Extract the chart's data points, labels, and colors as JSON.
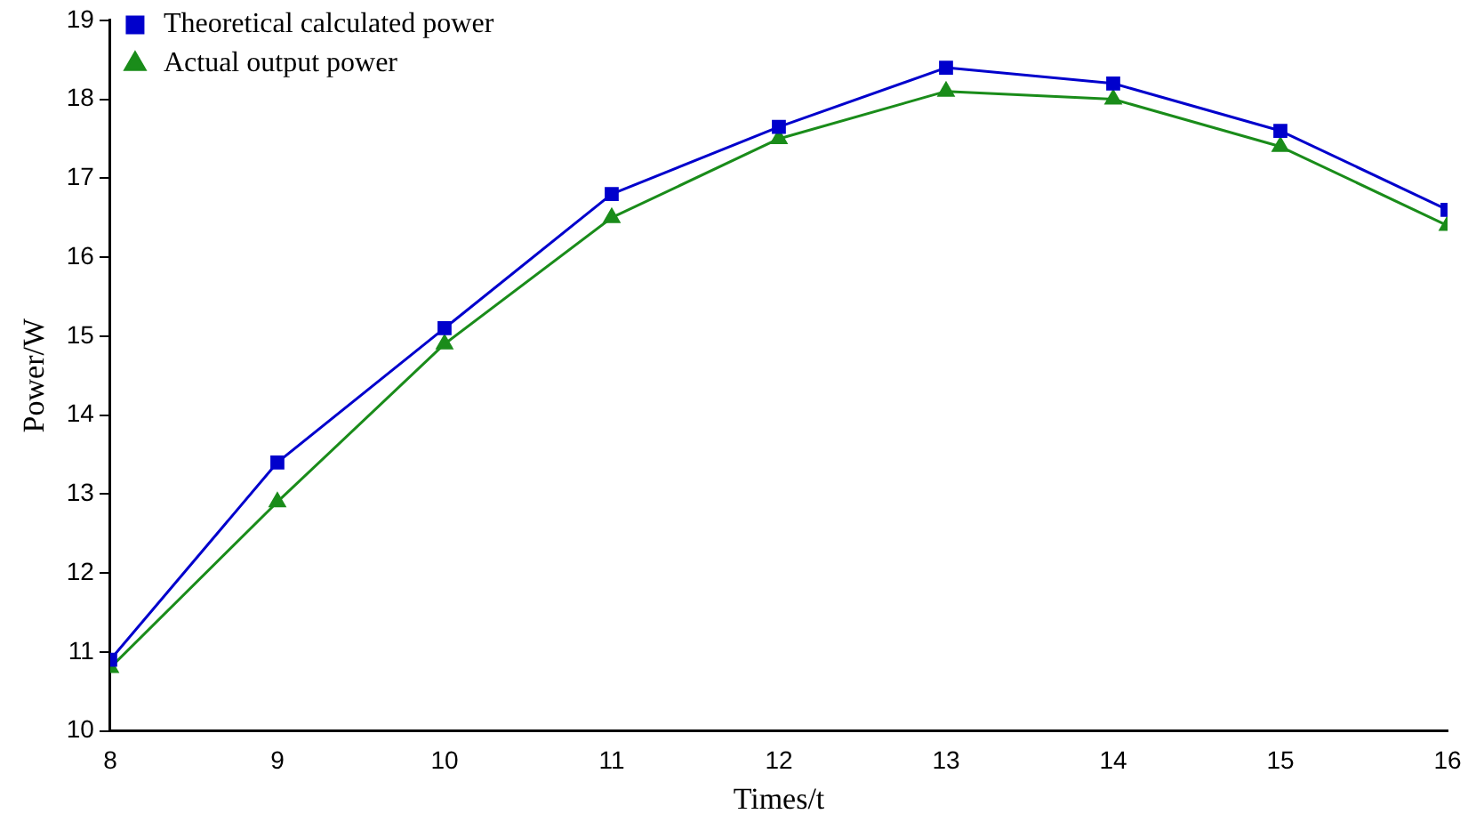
{
  "chart_data": {
    "type": "line",
    "xlabel": "Times/t",
    "ylabel": "Power/W",
    "x": [
      8,
      9,
      10,
      11,
      12,
      13,
      14,
      15,
      16
    ],
    "series": [
      {
        "name": "Theoretical calculated power",
        "color": "#0000cc",
        "marker": "square",
        "values": [
          10.9,
          13.4,
          15.1,
          16.8,
          17.65,
          18.4,
          18.2,
          17.6,
          16.6
        ]
      },
      {
        "name": "Actual output power",
        "color": "#1a8c1a",
        "marker": "triangle",
        "values": [
          10.8,
          12.9,
          14.9,
          16.5,
          17.5,
          18.1,
          18.0,
          17.4,
          16.4
        ]
      }
    ],
    "xlim": [
      8,
      16
    ],
    "xticks": [
      8,
      9,
      10,
      11,
      12,
      13,
      14,
      15,
      16
    ],
    "ylim": [
      10,
      19
    ],
    "yticks": [
      10,
      11,
      12,
      13,
      14,
      15,
      16,
      17,
      18,
      19
    ],
    "grid": false,
    "legend": "top left",
    "line_style": "solid"
  }
}
